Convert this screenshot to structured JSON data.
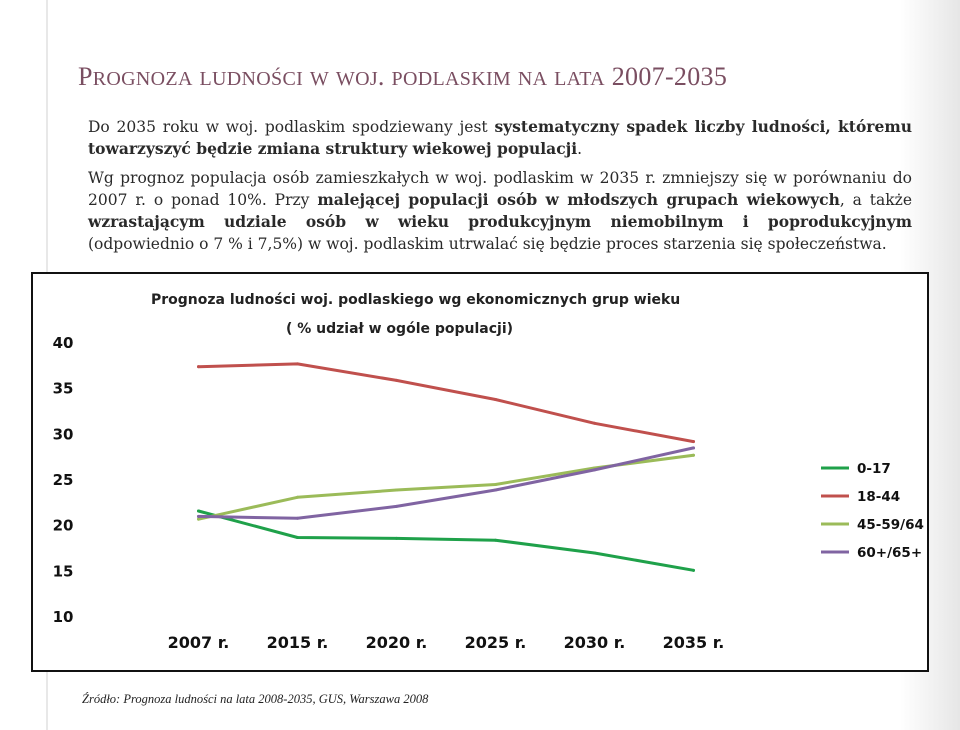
{
  "slide": {
    "title": "Prognoza ludności w woj. podlaskim na lata 2007-2035",
    "p1_parts": [
      "Do 2035 roku w woj. podlaskim spodziewany jest ",
      "systematyczny spadek liczby ludności, któremu towarzyszyć będzie zmiana struktury wiekowej populacji",
      "."
    ],
    "p2_parts": [
      "Wg prognoz populacja osób zamieszkałych w woj. podlaskim w 2035 r. zmniejszy się w porównaniu do 2007 r. o ponad 10%. Przy ",
      "malejącej populacji osób w młodszych grupach wiekowych",
      ", a także ",
      "wzrastającym udziale osób w wieku produkcyjnym niemobilnym i poprodukcyjnym",
      " (odpowiednio o 7 % i 7,5%) w woj. podlaskim utrwalać się będzie proces starzenia się społeczeństwa."
    ],
    "source": "Źródło: Prognoza ludności na lata 2008-2035, GUS, Warszawa 2008",
    "colors": {
      "title": "#7a4e61"
    }
  },
  "chart_data": {
    "type": "line",
    "title": "Prognoza ludności woj. podlaskiego wg ekonomicznych grup wieku",
    "subtitle": "( % udział w ogóle populacji)",
    "categories": [
      "2007 r.",
      "2015 r.",
      "2020 r.",
      "2025 r.",
      "2030 r.",
      "2035 r."
    ],
    "ylim": [
      10,
      40
    ],
    "yticks": [
      10,
      15,
      20,
      25,
      30,
      35,
      40
    ],
    "grid": false,
    "legend_position": "right",
    "series": [
      {
        "name": "0-17",
        "color": "#1fa14a",
        "values": [
          21.5,
          18.6,
          18.5,
          18.3,
          16.9,
          15.0
        ]
      },
      {
        "name": "18-44",
        "color": "#c0504d",
        "values": [
          37.3,
          37.6,
          35.8,
          33.7,
          31.1,
          29.1
        ]
      },
      {
        "name": "45-59/64",
        "color": "#9bbb59",
        "values": [
          20.6,
          23.0,
          23.8,
          24.4,
          26.2,
          27.6
        ]
      },
      {
        "name": "60+/65+",
        "color": "#8064a2",
        "values": [
          20.9,
          20.7,
          22.0,
          23.8,
          26.0,
          28.4
        ]
      }
    ]
  }
}
